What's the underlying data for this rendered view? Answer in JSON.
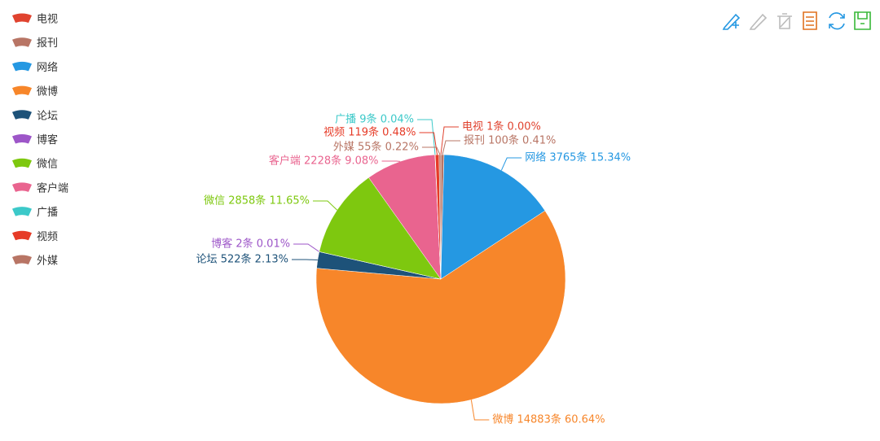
{
  "chart_data": {
    "type": "pie",
    "categories": [
      "电视",
      "报刊",
      "网络",
      "微博",
      "论坛",
      "博客",
      "微信",
      "客户端",
      "广播",
      "视频",
      "外媒"
    ],
    "values": [
      1,
      100,
      3765,
      14883,
      522,
      2,
      2858,
      2228,
      9,
      119,
      55
    ],
    "value_labels": [
      "电视 1条  0.00%",
      "报刊 100条  0.41%",
      "网络 3765条  15.34%",
      "微博 14883条  60.64%",
      "论坛 522条  2.13%",
      "博客 2条  0.01%",
      "微信 2858条  11.65%",
      "客户端 2228条  9.08%",
      "广播 9条  0.04%",
      "视频 119条  0.48%",
      "外媒 55条  0.22%"
    ],
    "colors": [
      "#e0432f",
      "#b87565",
      "#2598e2",
      "#f7862a",
      "#1d5279",
      "#9d56c8",
      "#7ec80f",
      "#e9648f",
      "#3cc9c9",
      "#e63b27",
      "#b87565"
    ],
    "legend": "left"
  }
}
